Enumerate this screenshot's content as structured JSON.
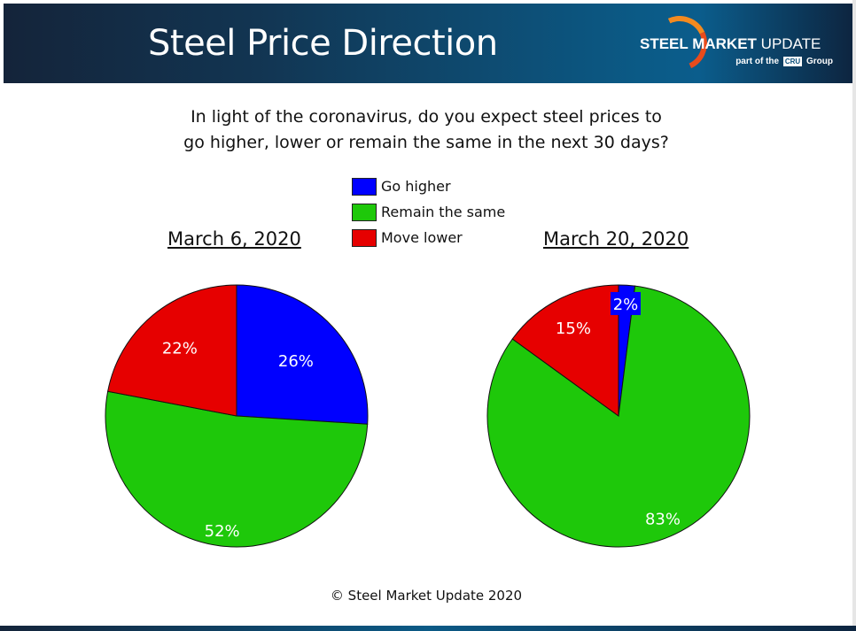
{
  "header": {
    "title": "Steel Price Direction",
    "logo_bold": "STEEL",
    "logo_mid": " MARKET",
    "logo_light": " UPDATE",
    "logo_sub_pre": "part of the",
    "logo_sub_badge": "CRU",
    "logo_sub_post": "Group"
  },
  "question": {
    "line1": "In light of the coronavirus, do you expect steel prices to",
    "line2": "go higher, lower or remain the same in the next 30 days?"
  },
  "footer": "© Steel Market Update 2020",
  "chart_data": [
    {
      "type": "pie",
      "title": "March 6, 2020",
      "categories": [
        "Go higher",
        "Remain the same",
        "Move lower"
      ],
      "values": [
        26,
        52,
        22
      ],
      "labels": [
        "26%",
        "52%",
        "22%"
      ],
      "colors": [
        "#0000ff",
        "#1ec80a",
        "#e60000"
      ],
      "start_angle_deg": 0,
      "direction": "clockwise",
      "legend": "top-center"
    },
    {
      "type": "pie",
      "title": "March 20, 2020",
      "categories": [
        "Go higher",
        "Remain the same",
        "Move lower"
      ],
      "values": [
        2,
        83,
        15
      ],
      "labels": [
        "2%",
        "83%",
        "15%"
      ],
      "colors": [
        "#0000ff",
        "#1ec80a",
        "#e60000"
      ],
      "start_angle_deg": 0,
      "direction": "clockwise",
      "legend": "top-center"
    }
  ],
  "legend": [
    {
      "label": "Go higher",
      "color": "#0000ff"
    },
    {
      "label": "Remain the same",
      "color": "#1ec80a"
    },
    {
      "label": "Move lower",
      "color": "#e60000"
    }
  ]
}
